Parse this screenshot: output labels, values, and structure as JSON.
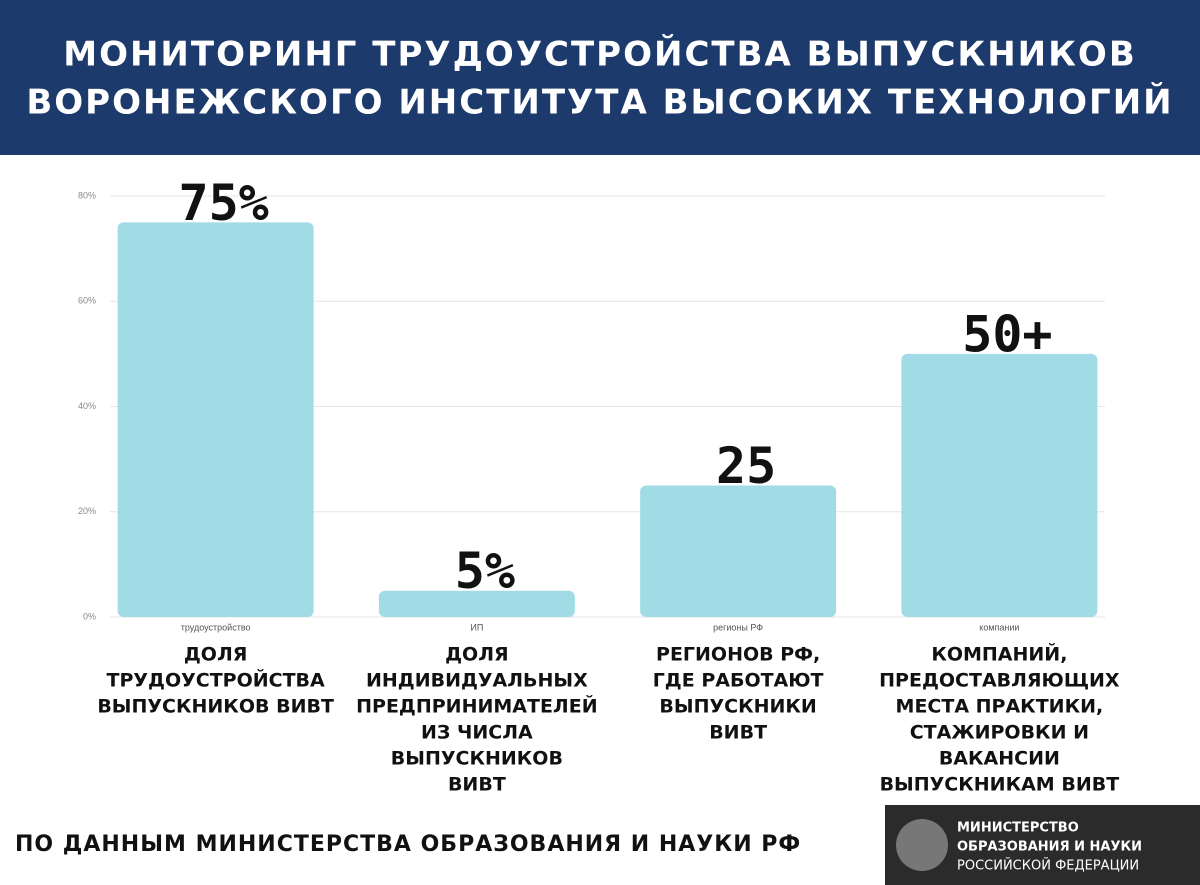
{
  "chart_data": {
    "type": "bar",
    "title": [
      "МОНИТОРИНГ ТРУДОУСТРОЙСТВА ВЫПУСКНИКОВ",
      "ВОРОНЕЖСКОГО ИНСТИТУТА ВЫСОКИХ ТЕХНОЛОГИЙ"
    ],
    "categories": [
      "трудоустройство",
      "ИП",
      "регионы РФ",
      "компании"
    ],
    "values": [
      75,
      5,
      25,
      50
    ],
    "value_labels": [
      "75%",
      "5%",
      "25",
      "50+"
    ],
    "color": "#a1dbe6",
    "ylim": [
      0,
      80
    ],
    "yticks": [
      {
        "value": 0,
        "label": "0%"
      },
      {
        "value": 20,
        "label": "20%"
      },
      {
        "value": 40,
        "label": "40%"
      },
      {
        "value": 60,
        "label": "60%"
      },
      {
        "value": 80,
        "label": "80%"
      }
    ],
    "grid": true,
    "descriptions": [
      [
        "ДОЛЯ",
        "ТРУДОУСТРОЙСТВА",
        "ВЫПУСКНИКОВ ВИВТ"
      ],
      [
        "ДОЛЯ",
        "ИНДИВИДУАЛЬНЫХ",
        "ПРЕДПРИНИМАТЕЛЕЙ",
        "ИЗ ЧИСЛА",
        "ВЫПУСКНИКОВ",
        "ВИВТ"
      ],
      [
        "РЕГИОНОВ РФ,",
        "ГДЕ РАБОТАЮТ",
        "ВЫПУСКНИКИ",
        "ВИВТ"
      ],
      [
        "КОМПАНИЙ,",
        "ПРЕДОСТАВЛЯЮЩИХ",
        "МЕСТА ПРАКТИКИ,",
        "СТАЖИРОВКИ И",
        "ВАКАНСИИ",
        "ВЫПУСКНИКАМ ВИВТ"
      ]
    ],
    "source": "ПО ДАННЫМ МИНИСТЕРСТВА ОБРАЗОВАНИЯ И НАУКИ РФ",
    "ministry": [
      "МИНИСТЕРСТВО",
      "ОБРАЗОВАНИЯ И НАУКИ",
      "РОССИЙСКОЙ ФЕДЕРАЦИИ"
    ]
  }
}
